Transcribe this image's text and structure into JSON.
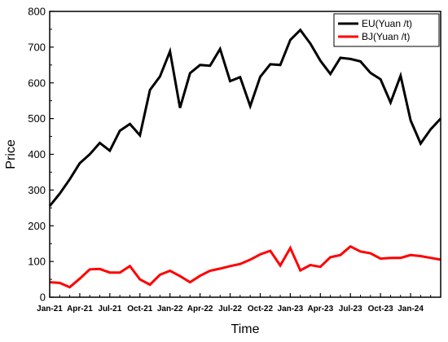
{
  "chart_data": {
    "type": "line",
    "xlabel": "Time",
    "ylabel": "Price",
    "ylim": [
      0,
      800
    ],
    "y_ticks": [
      0,
      100,
      200,
      300,
      400,
      500,
      600,
      700,
      800
    ],
    "x_tick_labels": [
      "Jan-21",
      "Apr-21",
      "Jul-21",
      "Oct-21",
      "Jan-22",
      "Apr-22",
      "Jul-22",
      "Oct-22",
      "Jan-23",
      "Apr-23",
      "Jul-23",
      "Oct-23",
      "Jan-24"
    ],
    "x": [
      "Jan-21",
      "Feb-21",
      "Mar-21",
      "Apr-21",
      "May-21",
      "Jun-21",
      "Jul-21",
      "Aug-21",
      "Sep-21",
      "Oct-21",
      "Nov-21",
      "Dec-21",
      "Jan-22",
      "Feb-22",
      "Mar-22",
      "Apr-22",
      "May-22",
      "Jun-22",
      "Jul-22",
      "Aug-22",
      "Sep-22",
      "Oct-22",
      "Nov-22",
      "Dec-22",
      "Jan-23",
      "Feb-23",
      "Mar-23",
      "Apr-23",
      "May-23",
      "Jun-23",
      "Jul-23",
      "Aug-23",
      "Sep-23",
      "Oct-23",
      "Nov-23",
      "Dec-23",
      "Jan-24",
      "Feb-24",
      "Mar-24",
      "Apr-24"
    ],
    "series": [
      {
        "name": "EU(Yuan /t)",
        "color": "#000000",
        "values": [
          255,
          290,
          330,
          375,
          400,
          432,
          410,
          466,
          485,
          453,
          580,
          618,
          688,
          530,
          627,
          650,
          648,
          695,
          605,
          616,
          535,
          617,
          652,
          650,
          720,
          748,
          710,
          662,
          625,
          670,
          667,
          660,
          628,
          610,
          545,
          620,
          495,
          430,
          470,
          500
        ]
      },
      {
        "name": "BJ(Yuan /t)",
        "color": "#ff0000",
        "values": [
          42,
          40,
          28,
          52,
          78,
          79,
          69,
          69,
          87,
          50,
          35,
          63,
          74,
          59,
          42,
          60,
          74,
          80,
          87,
          93,
          105,
          120,
          130,
          89,
          138,
          75,
          90,
          85,
          112,
          118,
          142,
          128,
          123,
          108,
          110,
          110,
          118,
          115,
          110,
          105
        ]
      }
    ],
    "legend_position": "top-right",
    "grid": false
  }
}
